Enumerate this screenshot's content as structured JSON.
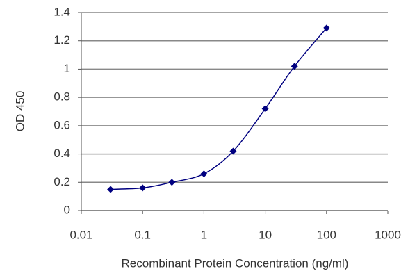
{
  "chart_data": {
    "type": "line",
    "xlabel": "Recombinant Protein Concentration (ng/ml)",
    "ylabel": "OD 450",
    "x": [
      0.03,
      0.1,
      0.3,
      1,
      3,
      10,
      30,
      100
    ],
    "series": [
      {
        "color": "#000080",
        "values": [
          0.15,
          0.16,
          0.2,
          0.26,
          0.42,
          0.72,
          1.02,
          1.29
        ]
      }
    ],
    "xlim": [
      0.01,
      1000
    ],
    "xticks": [
      0.01,
      0.1,
      1,
      10,
      100,
      1000
    ],
    "xscale": "log",
    "ylim": [
      0,
      1.4
    ],
    "yticks": [
      0,
      0.2,
      0.4,
      0.6,
      0.8,
      1,
      1.2,
      1.4
    ],
    "grid": true
  }
}
